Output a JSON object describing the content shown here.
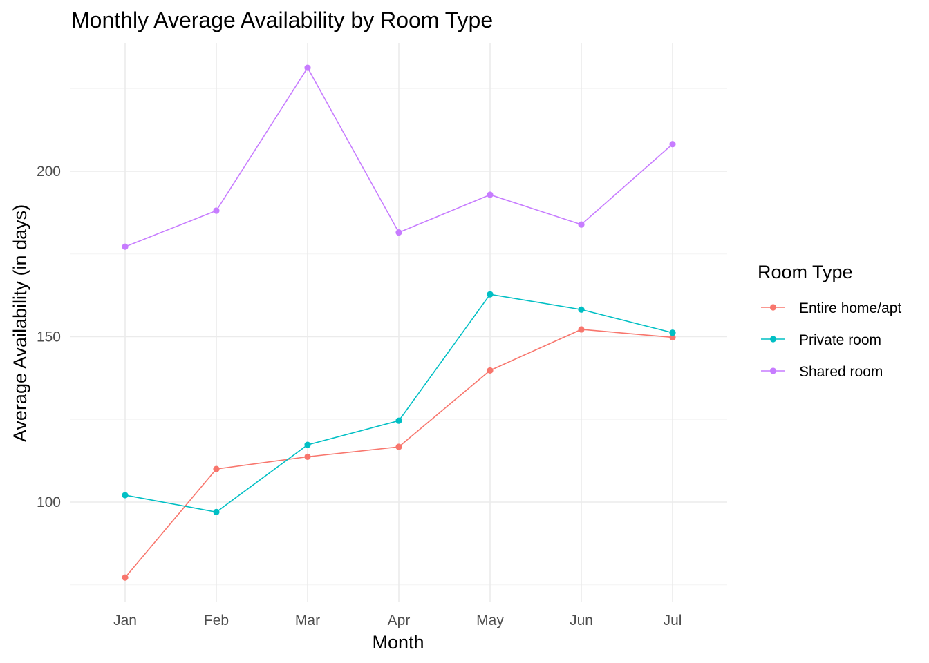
{
  "chart_data": {
    "type": "line",
    "title": "Monthly Average Availability by Room Type",
    "xlabel": "Month",
    "ylabel": "Average Availability (in days)",
    "categories": [
      "Jan",
      "Feb",
      "Mar",
      "Apr",
      "May",
      "Jun",
      "Jul"
    ],
    "ylim": [
      72,
      242
    ],
    "yticks": [
      100,
      150,
      200
    ],
    "grid": true,
    "legend": {
      "title": "Room Type",
      "position": "right"
    },
    "series": [
      {
        "name": "Entire home/apt",
        "color": "#F8766D",
        "values": [
          77.2,
          110.0,
          113.7,
          116.7,
          139.8,
          152.2,
          149.8
        ]
      },
      {
        "name": "Private room",
        "color": "#00BFC4",
        "values": [
          102.1,
          97.0,
          117.3,
          124.6,
          162.8,
          158.2,
          151.2
        ]
      },
      {
        "name": "Shared room",
        "color": "#C77CFF",
        "values": [
          177.2,
          188.1,
          231.3,
          181.5,
          192.9,
          183.9,
          208.2
        ]
      }
    ]
  }
}
